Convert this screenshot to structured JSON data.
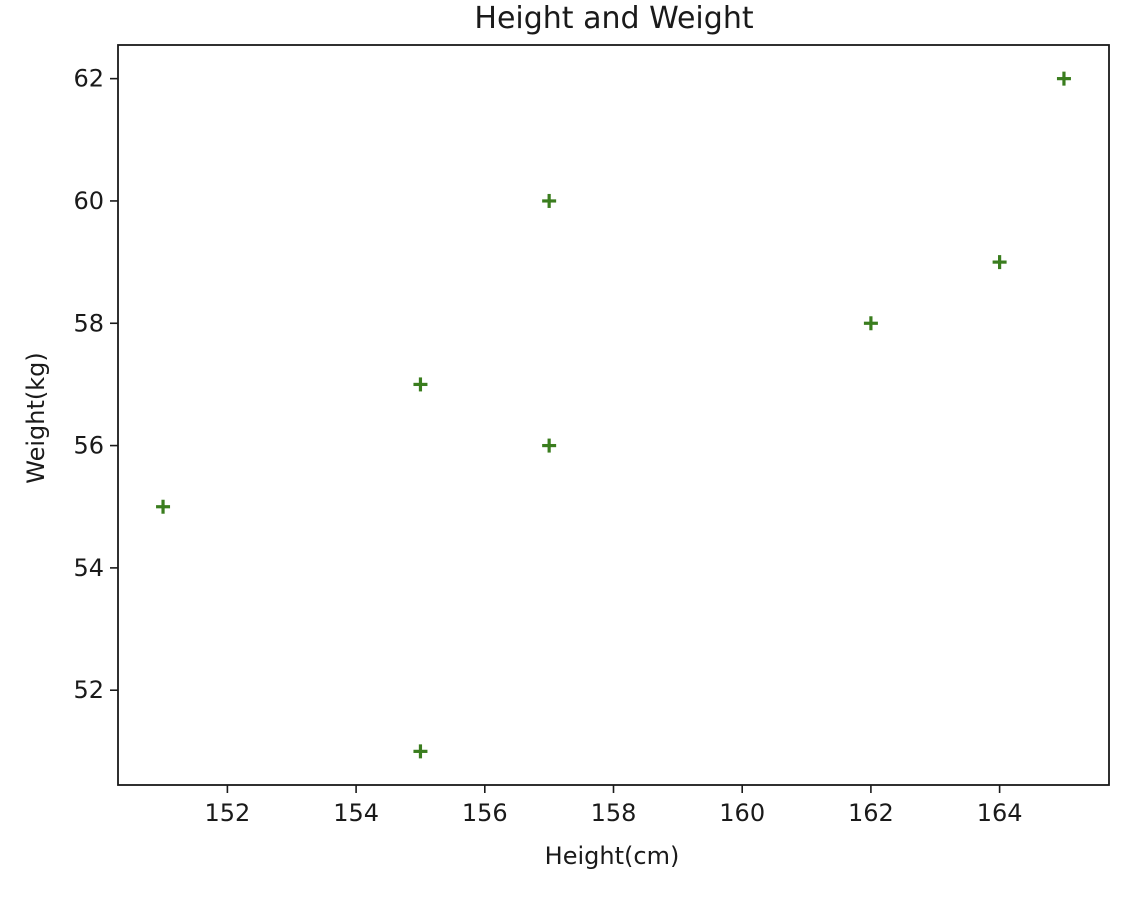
{
  "chart_data": {
    "type": "scatter",
    "title": "Height and Weight",
    "xlabel": "Height(cm)",
    "ylabel": "Weight(kg)",
    "xlim": [
      150.3,
      165.7
    ],
    "ylim": [
      50.45,
      62.55
    ],
    "xticks": [
      152,
      154,
      156,
      158,
      160,
      162,
      164
    ],
    "yticks": [
      52,
      54,
      56,
      58,
      60,
      62
    ],
    "grid": false,
    "marker": "plus",
    "color": "#3a7d1e",
    "points": [
      {
        "x": 151,
        "y": 55
      },
      {
        "x": 155,
        "y": 57
      },
      {
        "x": 155,
        "y": 51
      },
      {
        "x": 157,
        "y": 60
      },
      {
        "x": 157,
        "y": 56
      },
      {
        "x": 162,
        "y": 58
      },
      {
        "x": 164,
        "y": 59
      },
      {
        "x": 165,
        "y": 62
      }
    ]
  }
}
